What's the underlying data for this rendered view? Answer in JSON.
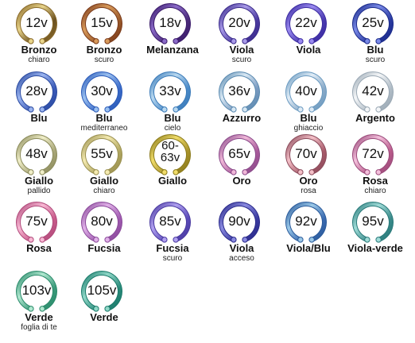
{
  "swatches": [
    {
      "voltage": "12v",
      "name": "Bronzo",
      "sub": "chiaro",
      "colors": [
        "#8a6a2a",
        "#e8d48a",
        "#6a5020"
      ]
    },
    {
      "voltage": "15v",
      "name": "Bronzo",
      "sub": "scuro",
      "colors": [
        "#7a3a1a",
        "#d89a5a",
        "#9a5a2a"
      ]
    },
    {
      "voltage": "18v",
      "name": "Melanzana",
      "sub": "",
      "colors": [
        "#3a1a6a",
        "#8a6ac8",
        "#4a2a7a"
      ]
    },
    {
      "voltage": "20v",
      "name": "Viola",
      "sub": "scuro",
      "colors": [
        "#3a2a8a",
        "#a89ae8",
        "#4a3aa0"
      ]
    },
    {
      "voltage": "22v",
      "name": "Viola",
      "sub": "",
      "colors": [
        "#3a2aa0",
        "#9a8af0",
        "#4a3ab0"
      ]
    },
    {
      "voltage": "25v",
      "name": "Blu",
      "sub": "scuro",
      "colors": [
        "#1a2a8a",
        "#7a8ae8",
        "#2a3aa0"
      ]
    },
    {
      "voltage": "28v",
      "name": "Blu",
      "sub": "",
      "colors": [
        "#2a4aa0",
        "#9ab4f0",
        "#3a5ab8"
      ]
    },
    {
      "voltage": "30v",
      "name": "Blu",
      "sub": "mediterraneo",
      "colors": [
        "#2a5ab8",
        "#9ac0f0",
        "#3a6ac8"
      ]
    },
    {
      "voltage": "33v",
      "name": "Blu",
      "sub": "cielo",
      "colors": [
        "#3a7ab8",
        "#b8d8f0",
        "#4a8ac8"
      ]
    },
    {
      "voltage": "36v",
      "name": "Azzurro",
      "sub": "",
      "colors": [
        "#5a8ab0",
        "#d8e8f4",
        "#7a9ac0"
      ]
    },
    {
      "voltage": "40v",
      "name": "Blu",
      "sub": "ghiaccio",
      "colors": [
        "#6a9ac0",
        "#e0ecf6",
        "#8aaac8"
      ]
    },
    {
      "voltage": "42v",
      "name": "Argento",
      "sub": "",
      "colors": [
        "#9aa8b4",
        "#f4f6f8",
        "#b0bcc6"
      ]
    },
    {
      "voltage": "48v",
      "name": "Giallo",
      "sub": "pallido",
      "colors": [
        "#8a8a5a",
        "#f0eec8",
        "#a8a678"
      ]
    },
    {
      "voltage": "55v",
      "name": "Giallo",
      "sub": "chiaro",
      "colors": [
        "#9a9050",
        "#f4eab0",
        "#b0a660"
      ]
    },
    {
      "voltage": "60-63v",
      "name": "Giallo",
      "sub": "",
      "colors": [
        "#8a7a1a",
        "#f0dc6a",
        "#a8922a"
      ]
    },
    {
      "voltage": "65v",
      "name": "Oro",
      "sub": "",
      "colors": [
        "#8a4a8a",
        "#f0b8d8",
        "#a85a9a"
      ]
    },
    {
      "voltage": "70v",
      "name": "Oro",
      "sub": "rosa",
      "colors": [
        "#8a4a5a",
        "#f4c0c8",
        "#a85a6a"
      ]
    },
    {
      "voltage": "72v",
      "name": "Rosa",
      "sub": "chiaro",
      "colors": [
        "#9a4a7a",
        "#f4c0dc",
        "#b85a8a"
      ]
    },
    {
      "voltage": "75v",
      "name": "Rosa",
      "sub": "",
      "colors": [
        "#b04a7a",
        "#f8b8d4",
        "#c85a8a"
      ]
    },
    {
      "voltage": "80v",
      "name": "Fucsia",
      "sub": "",
      "colors": [
        "#8a4a9a",
        "#e0b0e8",
        "#a05ab0"
      ]
    },
    {
      "voltage": "85v",
      "name": "Fucsia",
      "sub": "scuro",
      "colors": [
        "#4a3aa0",
        "#b0a0f0",
        "#5a4ab8"
      ]
    },
    {
      "voltage": "90v",
      "name": "Viola",
      "sub": "acceso",
      "colors": [
        "#2a2a8a",
        "#8a8ae0",
        "#3a3aa0"
      ]
    },
    {
      "voltage": "92v",
      "name": "Viola/Blu",
      "sub": "",
      "colors": [
        "#2a5a9a",
        "#9ac8e8",
        "#3a6ab0"
      ]
    },
    {
      "voltage": "95v",
      "name": "Viola-verde",
      "sub": "",
      "colors": [
        "#2a7a7a",
        "#a0dcd8",
        "#3a8a8a"
      ]
    },
    {
      "voltage": "103v",
      "name": "Verde",
      "sub": "foglia di te",
      "colors": [
        "#2a8a6a",
        "#b0e8d0",
        "#3a9a7a"
      ]
    },
    {
      "voltage": "105v",
      "name": "Verde",
      "sub": "",
      "colors": [
        "#1a7a6a",
        "#90d8c8",
        "#2a8a7a"
      ]
    }
  ]
}
